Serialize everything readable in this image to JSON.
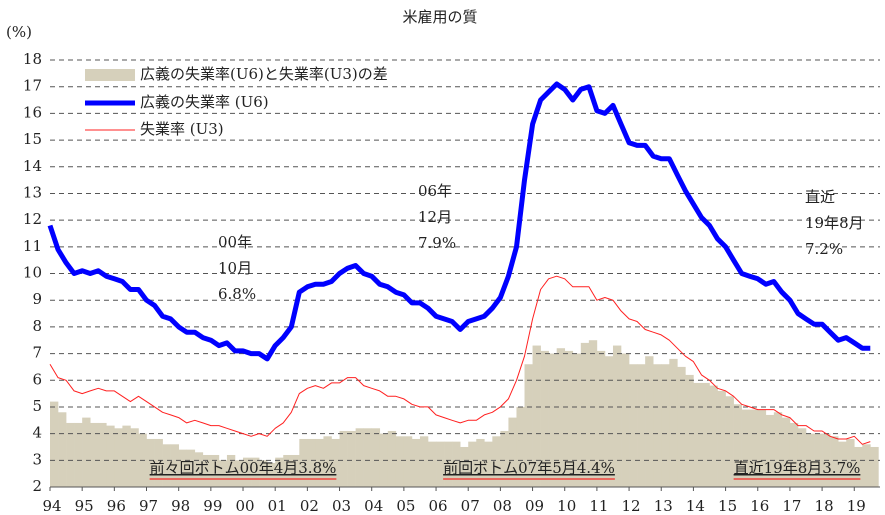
{
  "chart_data": {
    "type": "line",
    "title": "米雇用の質",
    "y_unit_label": "(%)",
    "x": [
      1994,
      1994.25,
      1994.5,
      1994.75,
      1995,
      1995.25,
      1995.5,
      1995.75,
      1996,
      1996.25,
      1996.5,
      1996.75,
      1997,
      1997.25,
      1997.5,
      1997.75,
      1998,
      1998.25,
      1998.5,
      1998.75,
      1999,
      1999.25,
      1999.5,
      1999.75,
      2000,
      2000.25,
      2000.5,
      2000.75,
      2001,
      2001.25,
      2001.5,
      2001.75,
      2002,
      2002.25,
      2002.5,
      2002.75,
      2003,
      2003.25,
      2003.5,
      2003.75,
      2004,
      2004.25,
      2004.5,
      2004.75,
      2005,
      2005.25,
      2005.5,
      2005.75,
      2006,
      2006.25,
      2006.5,
      2006.75,
      2007,
      2007.25,
      2007.5,
      2007.75,
      2008,
      2008.25,
      2008.5,
      2008.75,
      2009,
      2009.25,
      2009.5,
      2009.75,
      2010,
      2010.25,
      2010.5,
      2010.75,
      2011,
      2011.25,
      2011.5,
      2011.75,
      2012,
      2012.25,
      2012.5,
      2012.75,
      2013,
      2013.25,
      2013.5,
      2013.75,
      2014,
      2014.25,
      2014.5,
      2014.75,
      2015,
      2015.25,
      2015.5,
      2015.75,
      2016,
      2016.25,
      2016.5,
      2016.75,
      2017,
      2017.25,
      2017.5,
      2017.75,
      2018,
      2018.25,
      2018.5,
      2018.75,
      2019,
      2019.25,
      2019.5
    ],
    "series": [
      {
        "name": "広義の失業率(U6)と失業率(U3)の差",
        "type": "bar",
        "color": "#d6d0bb",
        "values": [
          5.2,
          4.8,
          4.4,
          4.4,
          4.6,
          4.4,
          4.4,
          4.3,
          4.2,
          4.3,
          4.2,
          4.0,
          3.8,
          3.8,
          3.6,
          3.6,
          3.4,
          3.4,
          3.3,
          3.2,
          3.2,
          3.0,
          3.2,
          3.0,
          3.1,
          3.1,
          3.0,
          2.9,
          3.1,
          3.2,
          3.2,
          3.8,
          3.8,
          3.8,
          3.9,
          3.8,
          4.1,
          4.1,
          4.2,
          4.2,
          4.2,
          4.0,
          4.1,
          3.9,
          3.9,
          3.8,
          3.9,
          3.7,
          3.7,
          3.7,
          3.7,
          3.5,
          3.7,
          3.8,
          3.7,
          3.9,
          4.1,
          4.6,
          5.0,
          6.6,
          7.3,
          7.1,
          7.0,
          7.2,
          7.1,
          7.0,
          7.4,
          7.5,
          7.1,
          6.9,
          7.3,
          7.0,
          6.6,
          6.6,
          6.9,
          6.6,
          6.6,
          6.8,
          6.5,
          6.2,
          5.9,
          5.9,
          5.8,
          5.6,
          5.4,
          5.1,
          4.9,
          4.9,
          4.9,
          4.7,
          4.8,
          4.6,
          4.4,
          4.2,
          4.0,
          4.0,
          4.0,
          3.9,
          3.7,
          3.8,
          3.5,
          3.6,
          3.5
        ]
      },
      {
        "name": "広義の失業率 (U6)",
        "type": "line",
        "color": "#0000ff",
        "width": 5,
        "values": [
          11.8,
          10.9,
          10.4,
          10.0,
          10.1,
          10.0,
          10.1,
          9.9,
          9.8,
          9.7,
          9.4,
          9.4,
          9.0,
          8.8,
          8.4,
          8.3,
          8.0,
          7.8,
          7.8,
          7.6,
          7.5,
          7.3,
          7.4,
          7.1,
          7.1,
          7.0,
          7.0,
          6.8,
          7.3,
          7.6,
          8.0,
          9.3,
          9.5,
          9.6,
          9.6,
          9.7,
          10.0,
          10.2,
          10.3,
          10.0,
          9.9,
          9.6,
          9.5,
          9.3,
          9.2,
          8.9,
          8.9,
          8.7,
          8.4,
          8.3,
          8.2,
          7.9,
          8.2,
          8.3,
          8.4,
          8.7,
          9.1,
          9.9,
          11.0,
          13.5,
          15.6,
          16.5,
          16.8,
          17.1,
          16.9,
          16.5,
          16.9,
          17.0,
          16.1,
          16.0,
          16.3,
          15.6,
          14.9,
          14.8,
          14.8,
          14.4,
          14.3,
          14.3,
          13.7,
          13.1,
          12.6,
          12.1,
          11.8,
          11.3,
          11.0,
          10.5,
          10.0,
          9.9,
          9.8,
          9.6,
          9.7,
          9.3,
          9.0,
          8.5,
          8.3,
          8.1,
          8.1,
          7.8,
          7.5,
          7.6,
          7.4,
          7.2,
          7.2
        ]
      },
      {
        "name": "失業率 (U3)",
        "type": "line",
        "color": "#ff2020",
        "width": 1,
        "values": [
          6.6,
          6.1,
          6.0,
          5.6,
          5.5,
          5.6,
          5.7,
          5.6,
          5.6,
          5.4,
          5.2,
          5.4,
          5.2,
          5.0,
          4.8,
          4.7,
          4.6,
          4.4,
          4.5,
          4.4,
          4.3,
          4.3,
          4.2,
          4.1,
          4.0,
          3.9,
          4.0,
          3.9,
          4.2,
          4.4,
          4.8,
          5.5,
          5.7,
          5.8,
          5.7,
          5.9,
          5.9,
          6.1,
          6.1,
          5.8,
          5.7,
          5.6,
          5.4,
          5.4,
          5.3,
          5.1,
          5.0,
          5.0,
          4.7,
          4.6,
          4.5,
          4.4,
          4.5,
          4.5,
          4.7,
          4.8,
          5.0,
          5.3,
          6.0,
          6.9,
          8.3,
          9.4,
          9.8,
          9.9,
          9.8,
          9.5,
          9.5,
          9.5,
          9.0,
          9.1,
          9.0,
          8.6,
          8.3,
          8.2,
          7.9,
          7.8,
          7.7,
          7.5,
          7.2,
          6.9,
          6.7,
          6.2,
          6.0,
          5.7,
          5.6,
          5.4,
          5.1,
          5.0,
          4.9,
          4.9,
          4.9,
          4.7,
          4.6,
          4.3,
          4.3,
          4.1,
          4.1,
          3.9,
          3.8,
          3.8,
          3.9,
          3.6,
          3.7
        ]
      }
    ],
    "xlim": [
      1994,
      2019.8
    ],
    "xticks": [
      {
        "value": 1994,
        "label": "94"
      },
      {
        "value": 1995,
        "label": "95"
      },
      {
        "value": 1996,
        "label": "96"
      },
      {
        "value": 1997,
        "label": "97"
      },
      {
        "value": 1998,
        "label": "98"
      },
      {
        "value": 1999,
        "label": "99"
      },
      {
        "value": 2000,
        "label": "00"
      },
      {
        "value": 2001,
        "label": "01"
      },
      {
        "value": 2002,
        "label": "02"
      },
      {
        "value": 2003,
        "label": "03"
      },
      {
        "value": 2004,
        "label": "04"
      },
      {
        "value": 2005,
        "label": "05"
      },
      {
        "value": 2006,
        "label": "06"
      },
      {
        "value": 2007,
        "label": "07"
      },
      {
        "value": 2008,
        "label": "08"
      },
      {
        "value": 2009,
        "label": "09"
      },
      {
        "value": 2010,
        "label": "10"
      },
      {
        "value": 2011,
        "label": "11"
      },
      {
        "value": 2012,
        "label": "12"
      },
      {
        "value": 2013,
        "label": "13"
      },
      {
        "value": 2014,
        "label": "14"
      },
      {
        "value": 2015,
        "label": "15"
      },
      {
        "value": 2016,
        "label": "16"
      },
      {
        "value": 2017,
        "label": "17"
      },
      {
        "value": 2018,
        "label": "18"
      },
      {
        "value": 2019,
        "label": "19"
      }
    ],
    "ylim": [
      2,
      18
    ],
    "yticks": [
      2,
      3,
      4,
      5,
      6,
      7,
      8,
      9,
      10,
      11,
      12,
      13,
      14,
      15,
      16,
      17,
      18
    ],
    "grid": true,
    "legend": "upper left",
    "annotations": [
      {
        "lines": [
          "00年",
          "10月",
          "6.8%"
        ],
        "color": "#0000ff"
      },
      {
        "lines": [
          "06年",
          "12月",
          "7.9%"
        ],
        "color": "#0000ff"
      },
      {
        "lines": [
          "直近",
          "19年8月",
          "7.2%"
        ],
        "color": "#0000ff"
      },
      {
        "lines": [
          "前々回ボトム00年4月3.8%"
        ],
        "color": "#ff0000"
      },
      {
        "lines": [
          "前回ボトム07年5月4.4%"
        ],
        "color": "#ff0000"
      },
      {
        "lines": [
          "直近19年8月3.7%"
        ],
        "color": "#ff0000"
      }
    ]
  }
}
